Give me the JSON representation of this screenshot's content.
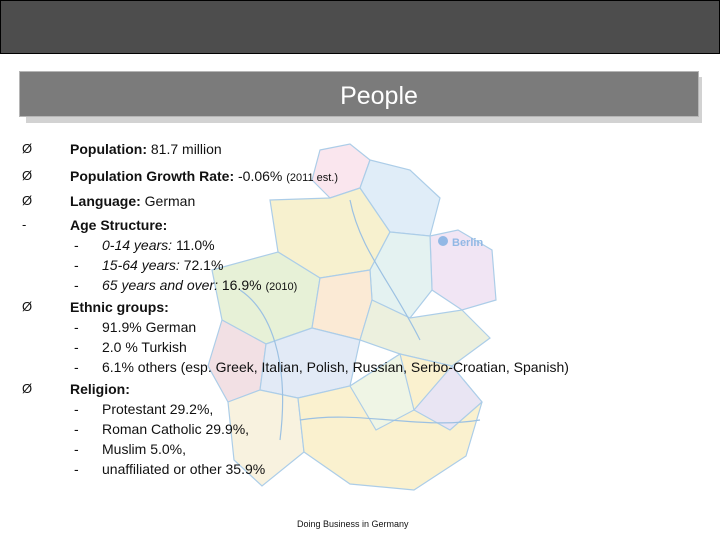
{
  "slide": {
    "title": "People",
    "footer": "Doing Business in Germany"
  },
  "map": {
    "city_label": "Berlin",
    "region_colors": [
      "#f6d3e1",
      "#c8dff3",
      "#f1e6a8",
      "#d4e7b8",
      "#e6d1ec",
      "#cfe9e6",
      "#f9d9b3",
      "#dde5c4",
      "#e9c7cf",
      "#cbd9ef",
      "#f3e9c6",
      "#e3edd0",
      "#f7e7a9",
      "#d8d0eb"
    ]
  },
  "bullets": {
    "population": {
      "marker": "Ø",
      "label": "Population:",
      "value": "81.7 million"
    },
    "growth": {
      "marker": "Ø",
      "label": "Population Growth Rate:",
      "value": "-0.06%",
      "note": "(2011 est.)"
    },
    "language": {
      "marker": "Ø",
      "label": "Language:",
      "value": "German"
    },
    "age": {
      "marker": "-",
      "label": "Age Structure:",
      "items": [
        {
          "dash": "-",
          "label": "0-14 years:",
          "value": "11.0%"
        },
        {
          "dash": "-",
          "label": "15-64 years:",
          "value": "72.1%"
        },
        {
          "dash": "-",
          "label": "65 years and over:",
          "value": "16.9%",
          "note": "(2010)"
        }
      ]
    },
    "ethnic": {
      "marker": "Ø",
      "label": "Ethnic groups:",
      "items": [
        {
          "dash": "-",
          "text": "91.9% German"
        },
        {
          "dash": "-",
          "text": "2.0 % Turkish"
        },
        {
          "dash": "-",
          "text": "6.1% others (esp. Greek, Italian, Polish, Russian, Serbo-Croatian, Spanish)"
        }
      ]
    },
    "religion": {
      "marker": "Ø",
      "label": "Religion:",
      "items": [
        {
          "dash": "-",
          "text": "Protestant 29.2%,"
        },
        {
          "dash": "-",
          "text": "Roman Catholic 29.9%,"
        },
        {
          "dash": "-",
          "text": "Muslim 5.0%,"
        },
        {
          "dash": "-",
          "text": "unaffiliated or other 35.9%"
        }
      ]
    }
  }
}
